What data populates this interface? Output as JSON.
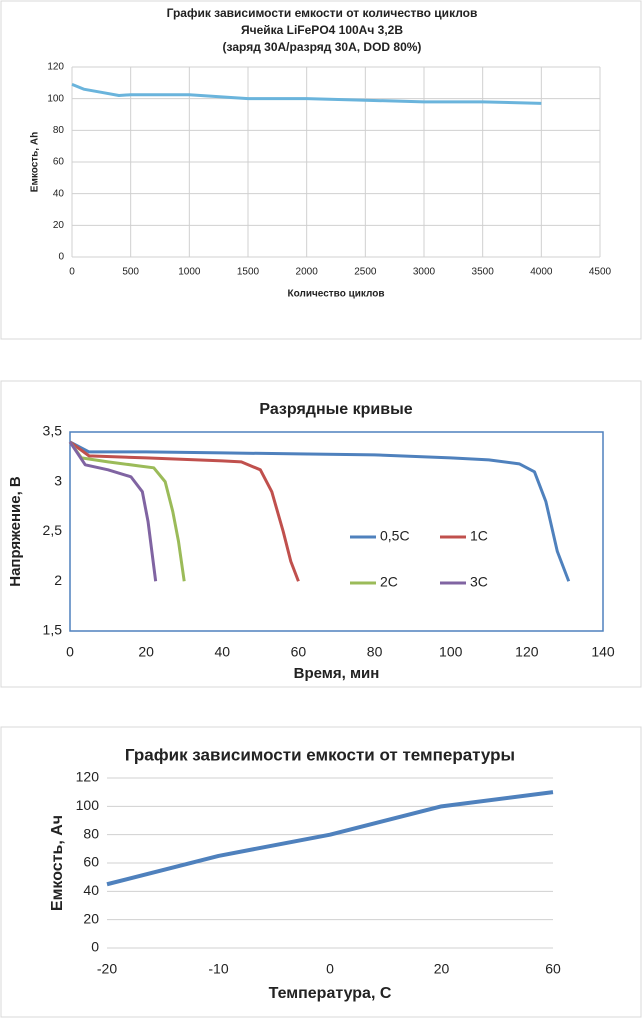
{
  "chart_data": [
    {
      "type": "line",
      "title": "График зависимости емкости от количество циклов",
      "subtitle": [
        "Ячейка LiFePO4 100Ач 3,2В",
        "(заряд 30А/разряд 30А, DOD 80%)"
      ],
      "xlabel": "Количество циклов",
      "ylabel": "Емкость, Ah",
      "x": [
        0,
        100,
        250,
        400,
        500,
        1000,
        1500,
        2000,
        2500,
        3000,
        3500,
        4000
      ],
      "values": [
        109,
        106,
        104,
        102,
        102.5,
        102.5,
        100,
        100,
        99,
        98,
        98,
        97
      ],
      "color": "#6ab4dc",
      "xlim": [
        0,
        4500
      ],
      "xticks": [
        0,
        500,
        1000,
        1500,
        2000,
        2500,
        3000,
        3500,
        4000,
        4500
      ],
      "ylim": [
        0,
        120
      ],
      "yticks": [
        0,
        20,
        40,
        60,
        80,
        100,
        120
      ],
      "grid": true
    },
    {
      "type": "line",
      "title": "Разрядные кривые",
      "xlabel": "Время, мин",
      "ylabel": "Напряжение, В",
      "series": [
        {
          "name": "0,5C",
          "color": "#4f81bd",
          "x": [
            0,
            5,
            20,
            40,
            60,
            80,
            100,
            110,
            118,
            122,
            125,
            128,
            131
          ],
          "values": [
            3.4,
            3.3,
            3.3,
            3.29,
            3.28,
            3.27,
            3.24,
            3.22,
            3.18,
            3.1,
            2.8,
            2.3,
            2.0
          ]
        },
        {
          "name": "1C",
          "color": "#c0504d",
          "x": [
            0,
            5,
            20,
            40,
            45,
            50,
            53,
            56,
            58,
            60
          ],
          "values": [
            3.4,
            3.26,
            3.24,
            3.21,
            3.2,
            3.12,
            2.9,
            2.5,
            2.2,
            2.0
          ]
        },
        {
          "name": "2C",
          "color": "#9bbb59",
          "x": [
            0,
            3,
            10,
            18,
            22,
            25,
            27,
            28.5,
            30
          ],
          "values": [
            3.4,
            3.24,
            3.2,
            3.16,
            3.14,
            3.0,
            2.7,
            2.4,
            2.0
          ]
        },
        {
          "name": "3C",
          "color": "#8064a2",
          "x": [
            0,
            4,
            10,
            16,
            19,
            20.5,
            21.5,
            22.5
          ],
          "values": [
            3.4,
            3.17,
            3.12,
            3.05,
            2.9,
            2.6,
            2.3,
            2.0
          ]
        }
      ],
      "xlim": [
        0,
        140
      ],
      "xticks": [
        0,
        20,
        40,
        60,
        80,
        100,
        120,
        140
      ],
      "ylim": [
        1.5,
        3.5
      ],
      "yticks": [
        {
          "value": 1.5,
          "label": "1,5"
        },
        2,
        {
          "value": 2.5,
          "label": "2,5"
        },
        3,
        {
          "value": 3.5,
          "label": "3,5"
        }
      ],
      "grid": false
    },
    {
      "type": "line",
      "title": "График зависимости емкости от температуры",
      "xlabel": "Температура, С",
      "ylabel": "Емкость, Ач",
      "categories": [
        "-20",
        "-10",
        "0",
        "20",
        "60"
      ],
      "values": [
        45,
        65,
        80,
        100,
        110
      ],
      "color": "#4f81bd",
      "ylim": [
        0,
        120
      ],
      "yticks": [
        0,
        20,
        40,
        60,
        80,
        100,
        120
      ],
      "grid": true
    }
  ]
}
